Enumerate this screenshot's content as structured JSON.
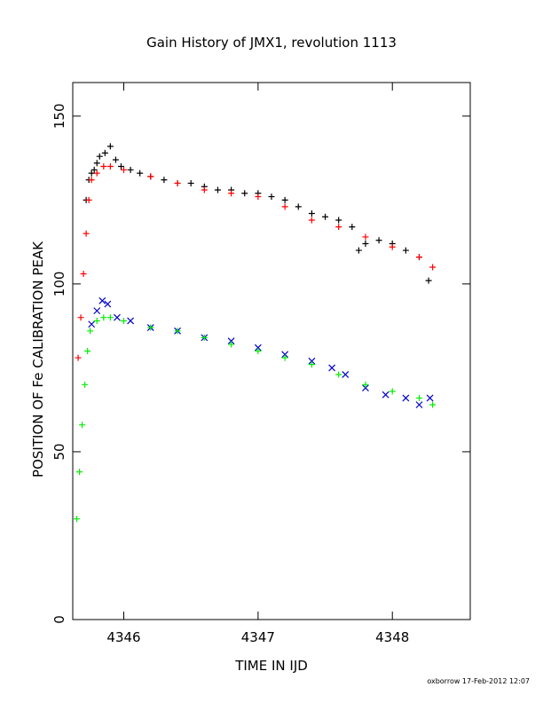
{
  "chart_data": {
    "type": "scatter",
    "title": "Gain History of JMX1, revolution 1113",
    "xlabel": "TIME IN IJD",
    "ylabel": "POSITION OF Fe CALIBRATION PEAK",
    "xlim": [
      4345.62,
      4348.58
    ],
    "ylim": [
      0,
      160
    ],
    "x_ticks": [
      4346,
      4347,
      4348
    ],
    "x_tick_labels": [
      "4346",
      "4347",
      "4348"
    ],
    "y_ticks": [
      0,
      50,
      100,
      150
    ],
    "y_tick_labels": [
      "0",
      "50",
      "100",
      "150"
    ],
    "grid": false,
    "legend": "none",
    "footer": "oxborrow 17-Feb-2012 12:07",
    "series": [
      {
        "marker": "plus",
        "color": "#000000",
        "x": [
          4345.72,
          4345.74,
          4345.76,
          4345.78,
          4345.8,
          4345.82,
          4345.86,
          4345.9,
          4345.94,
          4345.98,
          4346.05,
          4346.12,
          4346.2,
          4346.3,
          4346.4,
          4346.5,
          4346.6,
          4346.7,
          4346.8,
          4346.9,
          4347.0,
          4347.1,
          4347.2,
          4347.3,
          4347.4,
          4347.5,
          4347.6,
          4347.7,
          4347.75,
          4347.8,
          4347.9,
          4348.0,
          4348.1,
          4348.2,
          4348.27
        ],
        "y": [
          125,
          131,
          133,
          134,
          136,
          138,
          139,
          141,
          137,
          135,
          134,
          133,
          132,
          131,
          130,
          130,
          129,
          128,
          128,
          127,
          127,
          126,
          125,
          123,
          121,
          120,
          119,
          117,
          110,
          112,
          113,
          112,
          110,
          108,
          101
        ]
      },
      {
        "marker": "plus",
        "color": "#ff0000",
        "x": [
          4345.66,
          4345.68,
          4345.7,
          4345.72,
          4345.74,
          4345.76,
          4345.8,
          4345.85,
          4345.9,
          4346.0,
          4346.2,
          4346.4,
          4346.6,
          4346.8,
          4347.0,
          4347.2,
          4347.4,
          4347.6,
          4347.8,
          4348.0,
          4348.2,
          4348.3
        ],
        "y": [
          78,
          90,
          103,
          115,
          125,
          131,
          133,
          135,
          135,
          134,
          132,
          130,
          128,
          127,
          126,
          123,
          119,
          117,
          114,
          111,
          108,
          105
        ]
      },
      {
        "marker": "cross",
        "color": "#0000cc",
        "x": [
          4345.76,
          4345.8,
          4345.84,
          4345.88,
          4345.95,
          4346.05,
          4346.2,
          4346.4,
          4346.6,
          4346.8,
          4347.0,
          4347.2,
          4347.4,
          4347.55,
          4347.65,
          4347.8,
          4347.95,
          4348.1,
          4348.2,
          4348.28
        ],
        "y": [
          88,
          92,
          95,
          94,
          90,
          89,
          87,
          86,
          84,
          83,
          81,
          79,
          77,
          75,
          73,
          69,
          67,
          66,
          64,
          66
        ]
      },
      {
        "marker": "plus",
        "color": "#00ee00",
        "x": [
          4345.65,
          4345.67,
          4345.69,
          4345.71,
          4345.73,
          4345.75,
          4345.8,
          4345.85,
          4345.9,
          4346.0,
          4346.2,
          4346.4,
          4346.6,
          4346.8,
          4347.0,
          4347.2,
          4347.4,
          4347.6,
          4347.8,
          4348.0,
          4348.2,
          4348.3
        ],
        "y": [
          30,
          44,
          58,
          70,
          80,
          86,
          89,
          90,
          90,
          89,
          87,
          86,
          84,
          82,
          80,
          78,
          76,
          73,
          70,
          68,
          66,
          64
        ]
      }
    ]
  }
}
